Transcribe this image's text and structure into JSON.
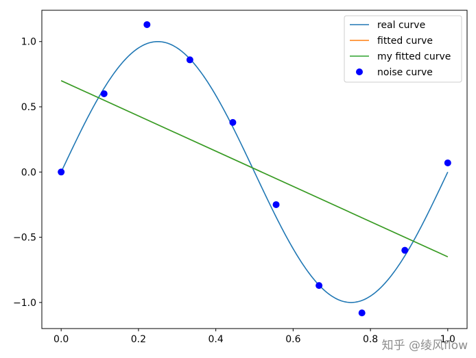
{
  "chart_data": {
    "type": "line",
    "xlim": [
      -0.05,
      1.05
    ],
    "ylim": [
      -1.2,
      1.24
    ],
    "xticks": [
      0.0,
      0.2,
      0.4,
      0.6,
      0.8,
      1.0
    ],
    "xtick_labels": [
      "0.0",
      "0.2",
      "0.4",
      "0.6",
      "0.8",
      "1.0"
    ],
    "yticks": [
      -1.0,
      -0.5,
      0.0,
      0.5,
      1.0
    ],
    "ytick_labels": [
      "−1.0",
      "−0.5",
      "0.0",
      "0.5",
      "1.0"
    ],
    "grid": false,
    "legend_position": "top-right",
    "series": [
      {
        "name": "real curve",
        "kind": "line",
        "color": "#1f77b4",
        "function": "sin(2*pi*x)",
        "x_range": [
          0.0,
          1.0
        ]
      },
      {
        "name": "fitted curve",
        "kind": "line",
        "color": "#ff7f0e",
        "x": [
          0.0,
          1.0
        ],
        "y": [
          0.7,
          -0.65
        ]
      },
      {
        "name": "my fitted curve",
        "kind": "line",
        "color": "#2ca02c",
        "x": [
          0.0,
          1.0
        ],
        "y": [
          0.7,
          -0.65
        ]
      },
      {
        "name": "noise curve",
        "kind": "scatter",
        "color": "#0000ff",
        "x": [
          0.0,
          0.111,
          0.222,
          0.333,
          0.444,
          0.556,
          0.667,
          0.778,
          0.889,
          1.0
        ],
        "y": [
          0.0,
          0.6,
          1.13,
          0.86,
          0.38,
          -0.25,
          -0.87,
          -1.08,
          -0.6,
          0.07
        ]
      }
    ]
  },
  "watermark": "知乎 @绫风flow"
}
